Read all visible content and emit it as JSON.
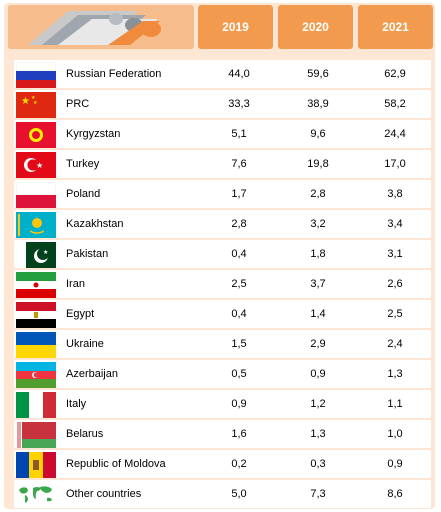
{
  "header": {
    "years": [
      "2019",
      "2020",
      "2021"
    ]
  },
  "rows": [
    {
      "country": "Russian Federation",
      "flag": "russia-flag-icon",
      "v2019": "44,0",
      "v2020": "59,6",
      "v2021": "62,9"
    },
    {
      "country": "PRC",
      "flag": "china-flag-icon",
      "v2019": "33,3",
      "v2020": "38,9",
      "v2021": "58,2"
    },
    {
      "country": "Kyrgyzstan",
      "flag": "kyrgyzstan-flag-icon",
      "v2019": "5,1",
      "v2020": "9,6",
      "v2021": "24,4"
    },
    {
      "country": "Turkey",
      "flag": "turkey-flag-icon",
      "v2019": "7,6",
      "v2020": "19,8",
      "v2021": "17,0"
    },
    {
      "country": "Poland",
      "flag": "poland-flag-icon",
      "v2019": "1,7",
      "v2020": "2,8",
      "v2021": "3,8"
    },
    {
      "country": "Kazakhstan",
      "flag": "kazakhstan-flag-icon",
      "v2019": "2,8",
      "v2020": "3,2",
      "v2021": "3,4"
    },
    {
      "country": "Pakistan",
      "flag": "pakistan-flag-icon",
      "v2019": "0,4",
      "v2020": "1,8",
      "v2021": "3,1"
    },
    {
      "country": "Iran",
      "flag": "iran-flag-icon",
      "v2019": "2,5",
      "v2020": "3,7",
      "v2021": "2,6"
    },
    {
      "country": "Egypt",
      "flag": "egypt-flag-icon",
      "v2019": "0,4",
      "v2020": "1,4",
      "v2021": "2,5"
    },
    {
      "country": "Ukraine",
      "flag": "ukraine-flag-icon",
      "v2019": "1,5",
      "v2020": "2,9",
      "v2021": "2,4"
    },
    {
      "country": "Azerbaijan",
      "flag": "azerbaijan-flag-icon",
      "v2019": "0,5",
      "v2020": "0,9",
      "v2021": "1,3"
    },
    {
      "country": "Italy",
      "flag": "italy-flag-icon",
      "v2019": "0,9",
      "v2020": "1,2",
      "v2021": "1,1"
    },
    {
      "country": "Belarus",
      "flag": "belarus-flag-icon",
      "v2019": "1,6",
      "v2020": "1,3",
      "v2021": "1,0"
    },
    {
      "country": "Republic of Moldova",
      "flag": "moldova-flag-icon",
      "v2019": "0,2",
      "v2020": "0,3",
      "v2021": "0,9"
    },
    {
      "country": "Other countries",
      "flag": "world-map-icon",
      "v2019": "5,0",
      "v2020": "7,3",
      "v2021": "8,6"
    }
  ],
  "colors": {
    "panel": "#fde7d4",
    "header": "#f29a4e",
    "row": "#ffffff"
  }
}
